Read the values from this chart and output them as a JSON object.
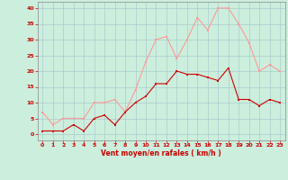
{
  "x": [
    0,
    1,
    2,
    3,
    4,
    5,
    6,
    7,
    8,
    9,
    10,
    11,
    12,
    13,
    14,
    15,
    16,
    17,
    18,
    19,
    20,
    21,
    22,
    23
  ],
  "wind_mean": [
    1,
    1,
    1,
    3,
    1,
    5,
    6,
    3,
    7,
    10,
    12,
    16,
    16,
    20,
    19,
    19,
    18,
    17,
    21,
    11,
    11,
    9,
    11,
    10
  ],
  "wind_gust": [
    7,
    3,
    5,
    5,
    5,
    10,
    10,
    11,
    7,
    14,
    23,
    30,
    31,
    24,
    30,
    37,
    33,
    40,
    40,
    35,
    29,
    20,
    22,
    20
  ],
  "xlabel": "Vent moyen/en rafales ( km/h )",
  "xlim_min": -0.5,
  "xlim_max": 23.5,
  "ylim_min": -2,
  "ylim_max": 42,
  "yticks": [
    0,
    5,
    10,
    15,
    20,
    25,
    30,
    35,
    40
  ],
  "xticks": [
    0,
    1,
    2,
    3,
    4,
    5,
    6,
    7,
    8,
    9,
    10,
    11,
    12,
    13,
    14,
    15,
    16,
    17,
    18,
    19,
    20,
    21,
    22,
    23
  ],
  "mean_color": "#cc0000",
  "gust_color": "#ff9999",
  "bg_color": "#cceedd",
  "grid_color": "#aacccc",
  "xlabel_color": "#cc0000",
  "tick_color": "#cc0000",
  "spine_color": "#888888"
}
